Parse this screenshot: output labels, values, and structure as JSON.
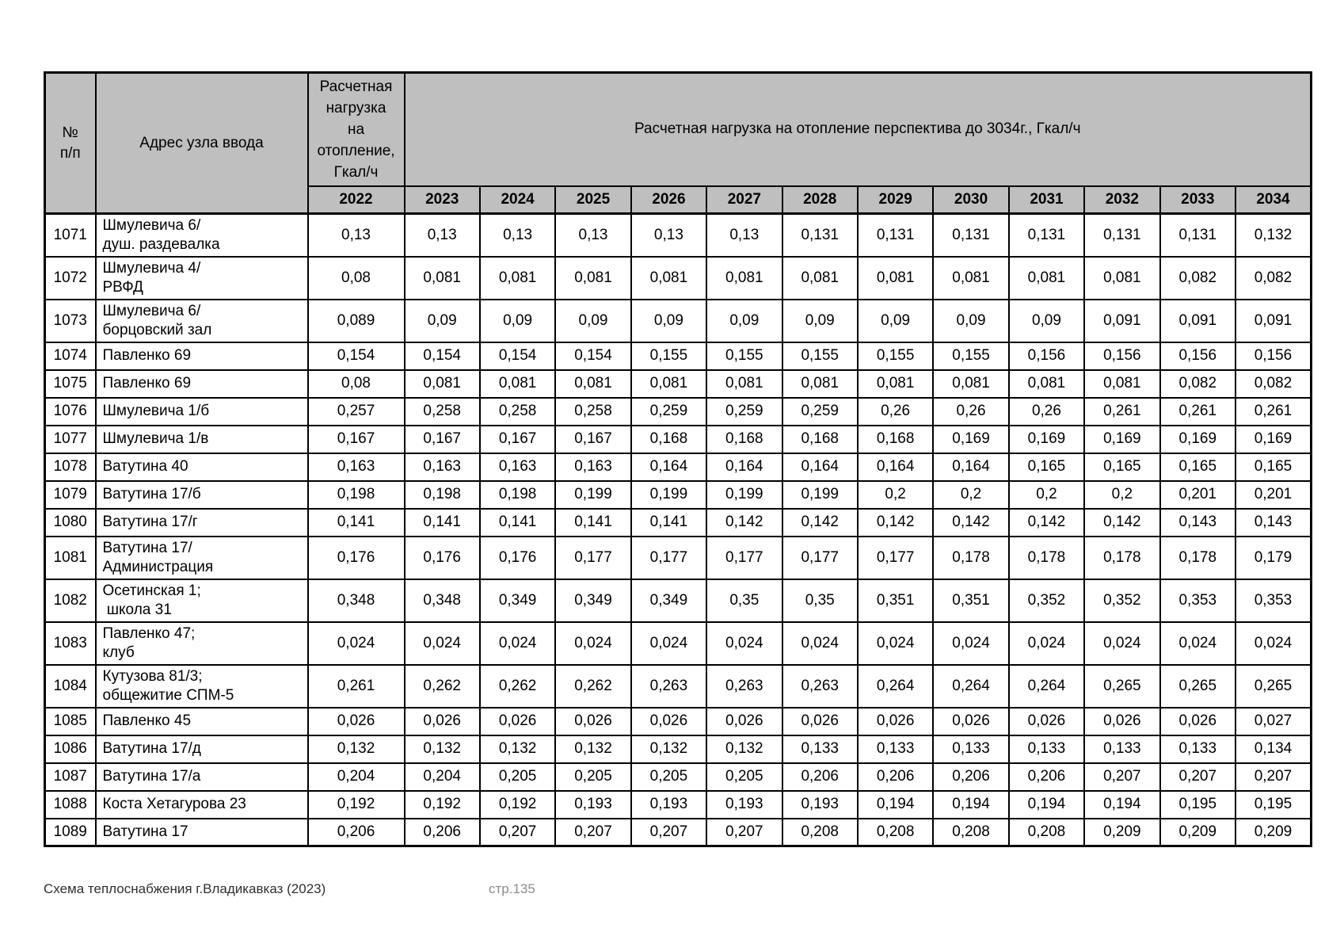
{
  "header": {
    "num_label": "№\nп/п",
    "address_label": "Адрес узла ввода",
    "load_label": "Расчетная\nнагрузка\nна\nотопление,\nГкал/ч",
    "forecast_label": "Расчетная нагрузка на отопление перспектива до 3034г., Гкал/ч",
    "years": [
      "2022",
      "2023",
      "2024",
      "2025",
      "2026",
      "2027",
      "2028",
      "2029",
      "2030",
      "2031",
      "2032",
      "2033",
      "2034"
    ]
  },
  "rows": [
    {
      "num": "1071",
      "address": "Шмулевича 6/\nдуш. раздевалка",
      "values": [
        "0,13",
        "0,13",
        "0,13",
        "0,13",
        "0,13",
        "0,13",
        "0,131",
        "0,131",
        "0,131",
        "0,131",
        "0,131",
        "0,131",
        "0,132"
      ]
    },
    {
      "num": "1072",
      "address": "Шмулевича 4/\nРВФД",
      "values": [
        "0,08",
        "0,081",
        "0,081",
        "0,081",
        "0,081",
        "0,081",
        "0,081",
        "0,081",
        "0,081",
        "0,081",
        "0,081",
        "0,082",
        "0,082"
      ]
    },
    {
      "num": "1073",
      "address": "Шмулевича 6/\nборцовский зал",
      "values": [
        "0,089",
        "0,09",
        "0,09",
        "0,09",
        "0,09",
        "0,09",
        "0,09",
        "0,09",
        "0,09",
        "0,09",
        "0,091",
        "0,091",
        "0,091"
      ]
    },
    {
      "num": "1074",
      "address": "Павленко 69",
      "values": [
        "0,154",
        "0,154",
        "0,154",
        "0,154",
        "0,155",
        "0,155",
        "0,155",
        "0,155",
        "0,155",
        "0,156",
        "0,156",
        "0,156",
        "0,156"
      ]
    },
    {
      "num": "1075",
      "address": "Павленко 69",
      "values": [
        "0,08",
        "0,081",
        "0,081",
        "0,081",
        "0,081",
        "0,081",
        "0,081",
        "0,081",
        "0,081",
        "0,081",
        "0,081",
        "0,082",
        "0,082"
      ]
    },
    {
      "num": "1076",
      "address": "Шмулевича 1/б",
      "values": [
        "0,257",
        "0,258",
        "0,258",
        "0,258",
        "0,259",
        "0,259",
        "0,259",
        "0,26",
        "0,26",
        "0,26",
        "0,261",
        "0,261",
        "0,261"
      ]
    },
    {
      "num": "1077",
      "address": "Шмулевича 1/в",
      "values": [
        "0,167",
        "0,167",
        "0,167",
        "0,167",
        "0,168",
        "0,168",
        "0,168",
        "0,168",
        "0,169",
        "0,169",
        "0,169",
        "0,169",
        "0,169"
      ]
    },
    {
      "num": "1078",
      "address": "Ватутина 40",
      "values": [
        "0,163",
        "0,163",
        "0,163",
        "0,163",
        "0,164",
        "0,164",
        "0,164",
        "0,164",
        "0,164",
        "0,165",
        "0,165",
        "0,165",
        "0,165"
      ]
    },
    {
      "num": "1079",
      "address": "Ватутина 17/б",
      "values": [
        "0,198",
        "0,198",
        "0,198",
        "0,199",
        "0,199",
        "0,199",
        "0,199",
        "0,2",
        "0,2",
        "0,2",
        "0,2",
        "0,201",
        "0,201"
      ]
    },
    {
      "num": "1080",
      "address": "Ватутина 17/г",
      "values": [
        "0,141",
        "0,141",
        "0,141",
        "0,141",
        "0,141",
        "0,142",
        "0,142",
        "0,142",
        "0,142",
        "0,142",
        "0,142",
        "0,143",
        "0,143"
      ]
    },
    {
      "num": "1081",
      "address": "Ватутина 17/\nАдминистрация",
      "values": [
        "0,176",
        "0,176",
        "0,176",
        "0,177",
        "0,177",
        "0,177",
        "0,177",
        "0,177",
        "0,178",
        "0,178",
        "0,178",
        "0,178",
        "0,179"
      ]
    },
    {
      "num": "1082",
      "address": "Осетинская 1;\n школа 31",
      "values": [
        "0,348",
        "0,348",
        "0,349",
        "0,349",
        "0,349",
        "0,35",
        "0,35",
        "0,351",
        "0,351",
        "0,352",
        "0,352",
        "0,353",
        "0,353"
      ]
    },
    {
      "num": "1083",
      "address": "Павленко 47;\nклуб",
      "values": [
        "0,024",
        "0,024",
        "0,024",
        "0,024",
        "0,024",
        "0,024",
        "0,024",
        "0,024",
        "0,024",
        "0,024",
        "0,024",
        "0,024",
        "0,024"
      ]
    },
    {
      "num": "1084",
      "address": "Кутузова 81/3;\nобщежитие СПМ-5",
      "values": [
        "0,261",
        "0,262",
        "0,262",
        "0,262",
        "0,263",
        "0,263",
        "0,263",
        "0,264",
        "0,264",
        "0,264",
        "0,265",
        "0,265",
        "0,265"
      ]
    },
    {
      "num": "1085",
      "address": "Павленко 45",
      "values": [
        "0,026",
        "0,026",
        "0,026",
        "0,026",
        "0,026",
        "0,026",
        "0,026",
        "0,026",
        "0,026",
        "0,026",
        "0,026",
        "0,026",
        "0,027"
      ]
    },
    {
      "num": "1086",
      "address": "Ватутина 17/д",
      "values": [
        "0,132",
        "0,132",
        "0,132",
        "0,132",
        "0,132",
        "0,132",
        "0,133",
        "0,133",
        "0,133",
        "0,133",
        "0,133",
        "0,133",
        "0,134"
      ]
    },
    {
      "num": "1087",
      "address": "Ватутина 17/а",
      "values": [
        "0,204",
        "0,204",
        "0,205",
        "0,205",
        "0,205",
        "0,205",
        "0,206",
        "0,206",
        "0,206",
        "0,206",
        "0,207",
        "0,207",
        "0,207"
      ]
    },
    {
      "num": "1088",
      "address": "Коста Хетагурова 23",
      "values": [
        "0,192",
        "0,192",
        "0,192",
        "0,193",
        "0,193",
        "0,193",
        "0,193",
        "0,194",
        "0,194",
        "0,194",
        "0,194",
        "0,195",
        "0,195"
      ]
    },
    {
      "num": "1089",
      "address": "Ватутина 17",
      "values": [
        "0,206",
        "0,206",
        "0,207",
        "0,207",
        "0,207",
        "0,207",
        "0,208",
        "0,208",
        "0,208",
        "0,208",
        "0,209",
        "0,209",
        "0,209"
      ]
    }
  ],
  "footer": {
    "left_text": "Схема теплоснабжения г.Владикавказ (2023)",
    "page_label": "стр.135"
  }
}
